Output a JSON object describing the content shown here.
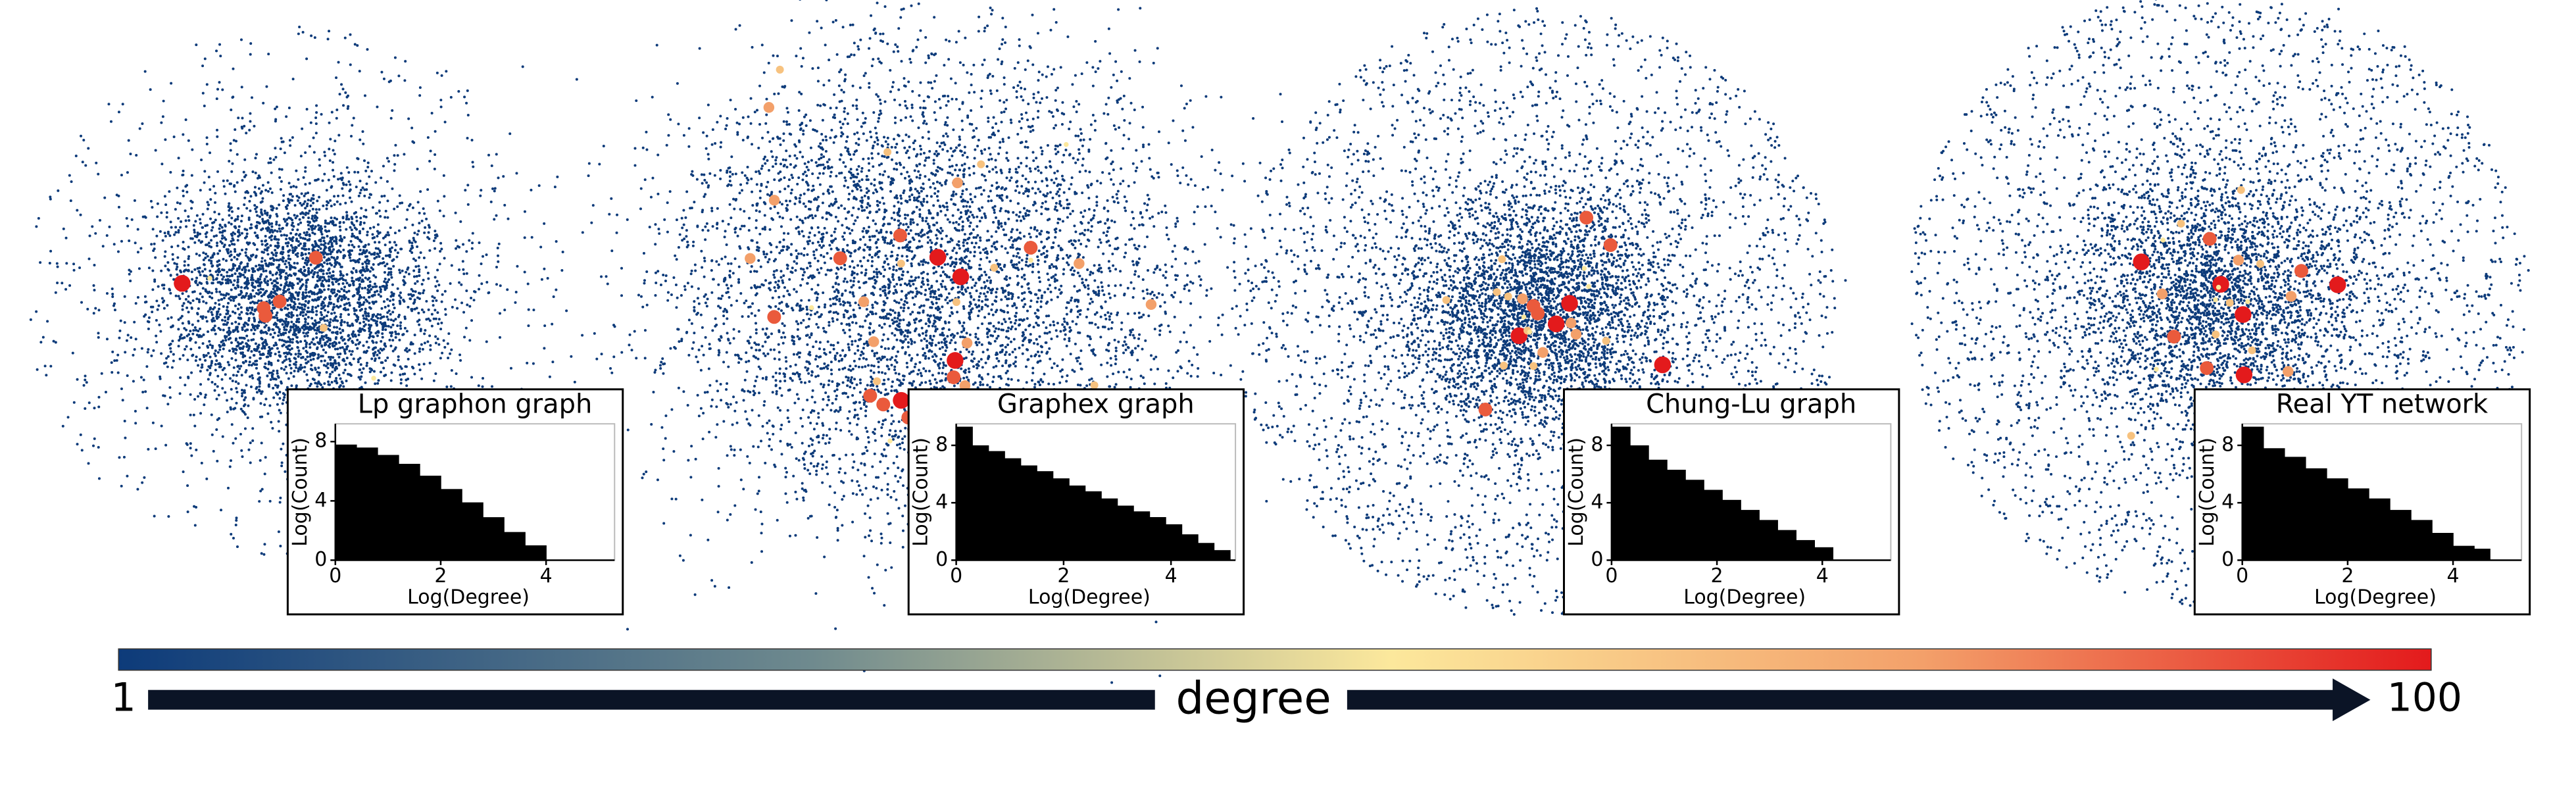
{
  "chart_data": [
    {
      "type": "histogram",
      "title": "Lp graphon graph",
      "xlabel": "Log(Degree)",
      "ylabel": "Log(Count)",
      "color": "#000000",
      "bins": [
        0,
        0.4,
        0.8,
        1.2,
        1.6,
        2.0,
        2.4,
        2.8,
        3.2,
        3.6,
        4.0
      ],
      "counts": [
        7.8,
        7.6,
        7.1,
        6.5,
        5.7,
        4.8,
        3.9,
        2.9,
        1.9,
        1.0
      ],
      "xlim": [
        0,
        5.3
      ],
      "ylim": [
        0,
        9.2
      ],
      "xticks": [
        0,
        2,
        4
      ],
      "yticks": [
        0,
        4,
        8
      ]
    },
    {
      "type": "histogram",
      "title": "Graphex graph",
      "xlabel": "Log(Degree)",
      "ylabel": "Log(Count)",
      "color": "#000000",
      "bins": [
        0,
        0.3,
        0.6,
        0.9,
        1.2,
        1.5,
        1.8,
        2.1,
        2.4,
        2.7,
        3.0,
        3.3,
        3.6,
        3.9,
        4.2,
        4.5,
        4.8,
        5.1
      ],
      "counts": [
        9.3,
        8.0,
        7.6,
        7.1,
        6.6,
        6.2,
        5.7,
        5.2,
        4.8,
        4.3,
        3.8,
        3.4,
        3.0,
        2.5,
        1.8,
        1.2,
        0.7
      ],
      "xlim": [
        0,
        5.2
      ],
      "ylim": [
        0,
        9.5
      ],
      "xticks": [
        0,
        2,
        4
      ],
      "yticks": [
        0,
        4,
        8
      ]
    },
    {
      "type": "histogram",
      "title": "Chung-Lu graph",
      "xlabel": "Log(Degree)",
      "ylabel": "Log(Count)",
      "color": "#000000",
      "bins": [
        0,
        0.35,
        0.7,
        1.05,
        1.4,
        1.75,
        2.1,
        2.45,
        2.8,
        3.15,
        3.5,
        3.85,
        4.2
      ],
      "counts": [
        9.3,
        8.0,
        7.0,
        6.3,
        5.6,
        4.9,
        4.2,
        3.5,
        2.8,
        2.1,
        1.4,
        0.9
      ],
      "xlim": [
        0,
        5.3
      ],
      "ylim": [
        0,
        9.5
      ],
      "xticks": [
        0,
        2,
        4
      ],
      "yticks": [
        0,
        4,
        8
      ]
    },
    {
      "type": "histogram",
      "title": "Real YT network",
      "xlabel": "Log(Degree)",
      "ylabel": "Log(Count)",
      "color": "#000000",
      "bins": [
        0,
        0.4,
        0.8,
        1.2,
        1.6,
        2.0,
        2.4,
        2.8,
        3.2,
        3.6,
        4.0,
        4.4,
        4.7
      ],
      "counts": [
        9.3,
        7.8,
        7.2,
        6.4,
        5.7,
        5.0,
        4.3,
        3.5,
        2.8,
        1.9,
        1.0,
        0.8
      ],
      "xlim": [
        0,
        5.3
      ],
      "ylim": [
        0,
        9.5
      ],
      "xticks": [
        0,
        2,
        4
      ],
      "yticks": [
        0,
        4,
        8
      ]
    }
  ],
  "colorbar": {
    "label": "degree",
    "min": 1,
    "max": 100
  }
}
